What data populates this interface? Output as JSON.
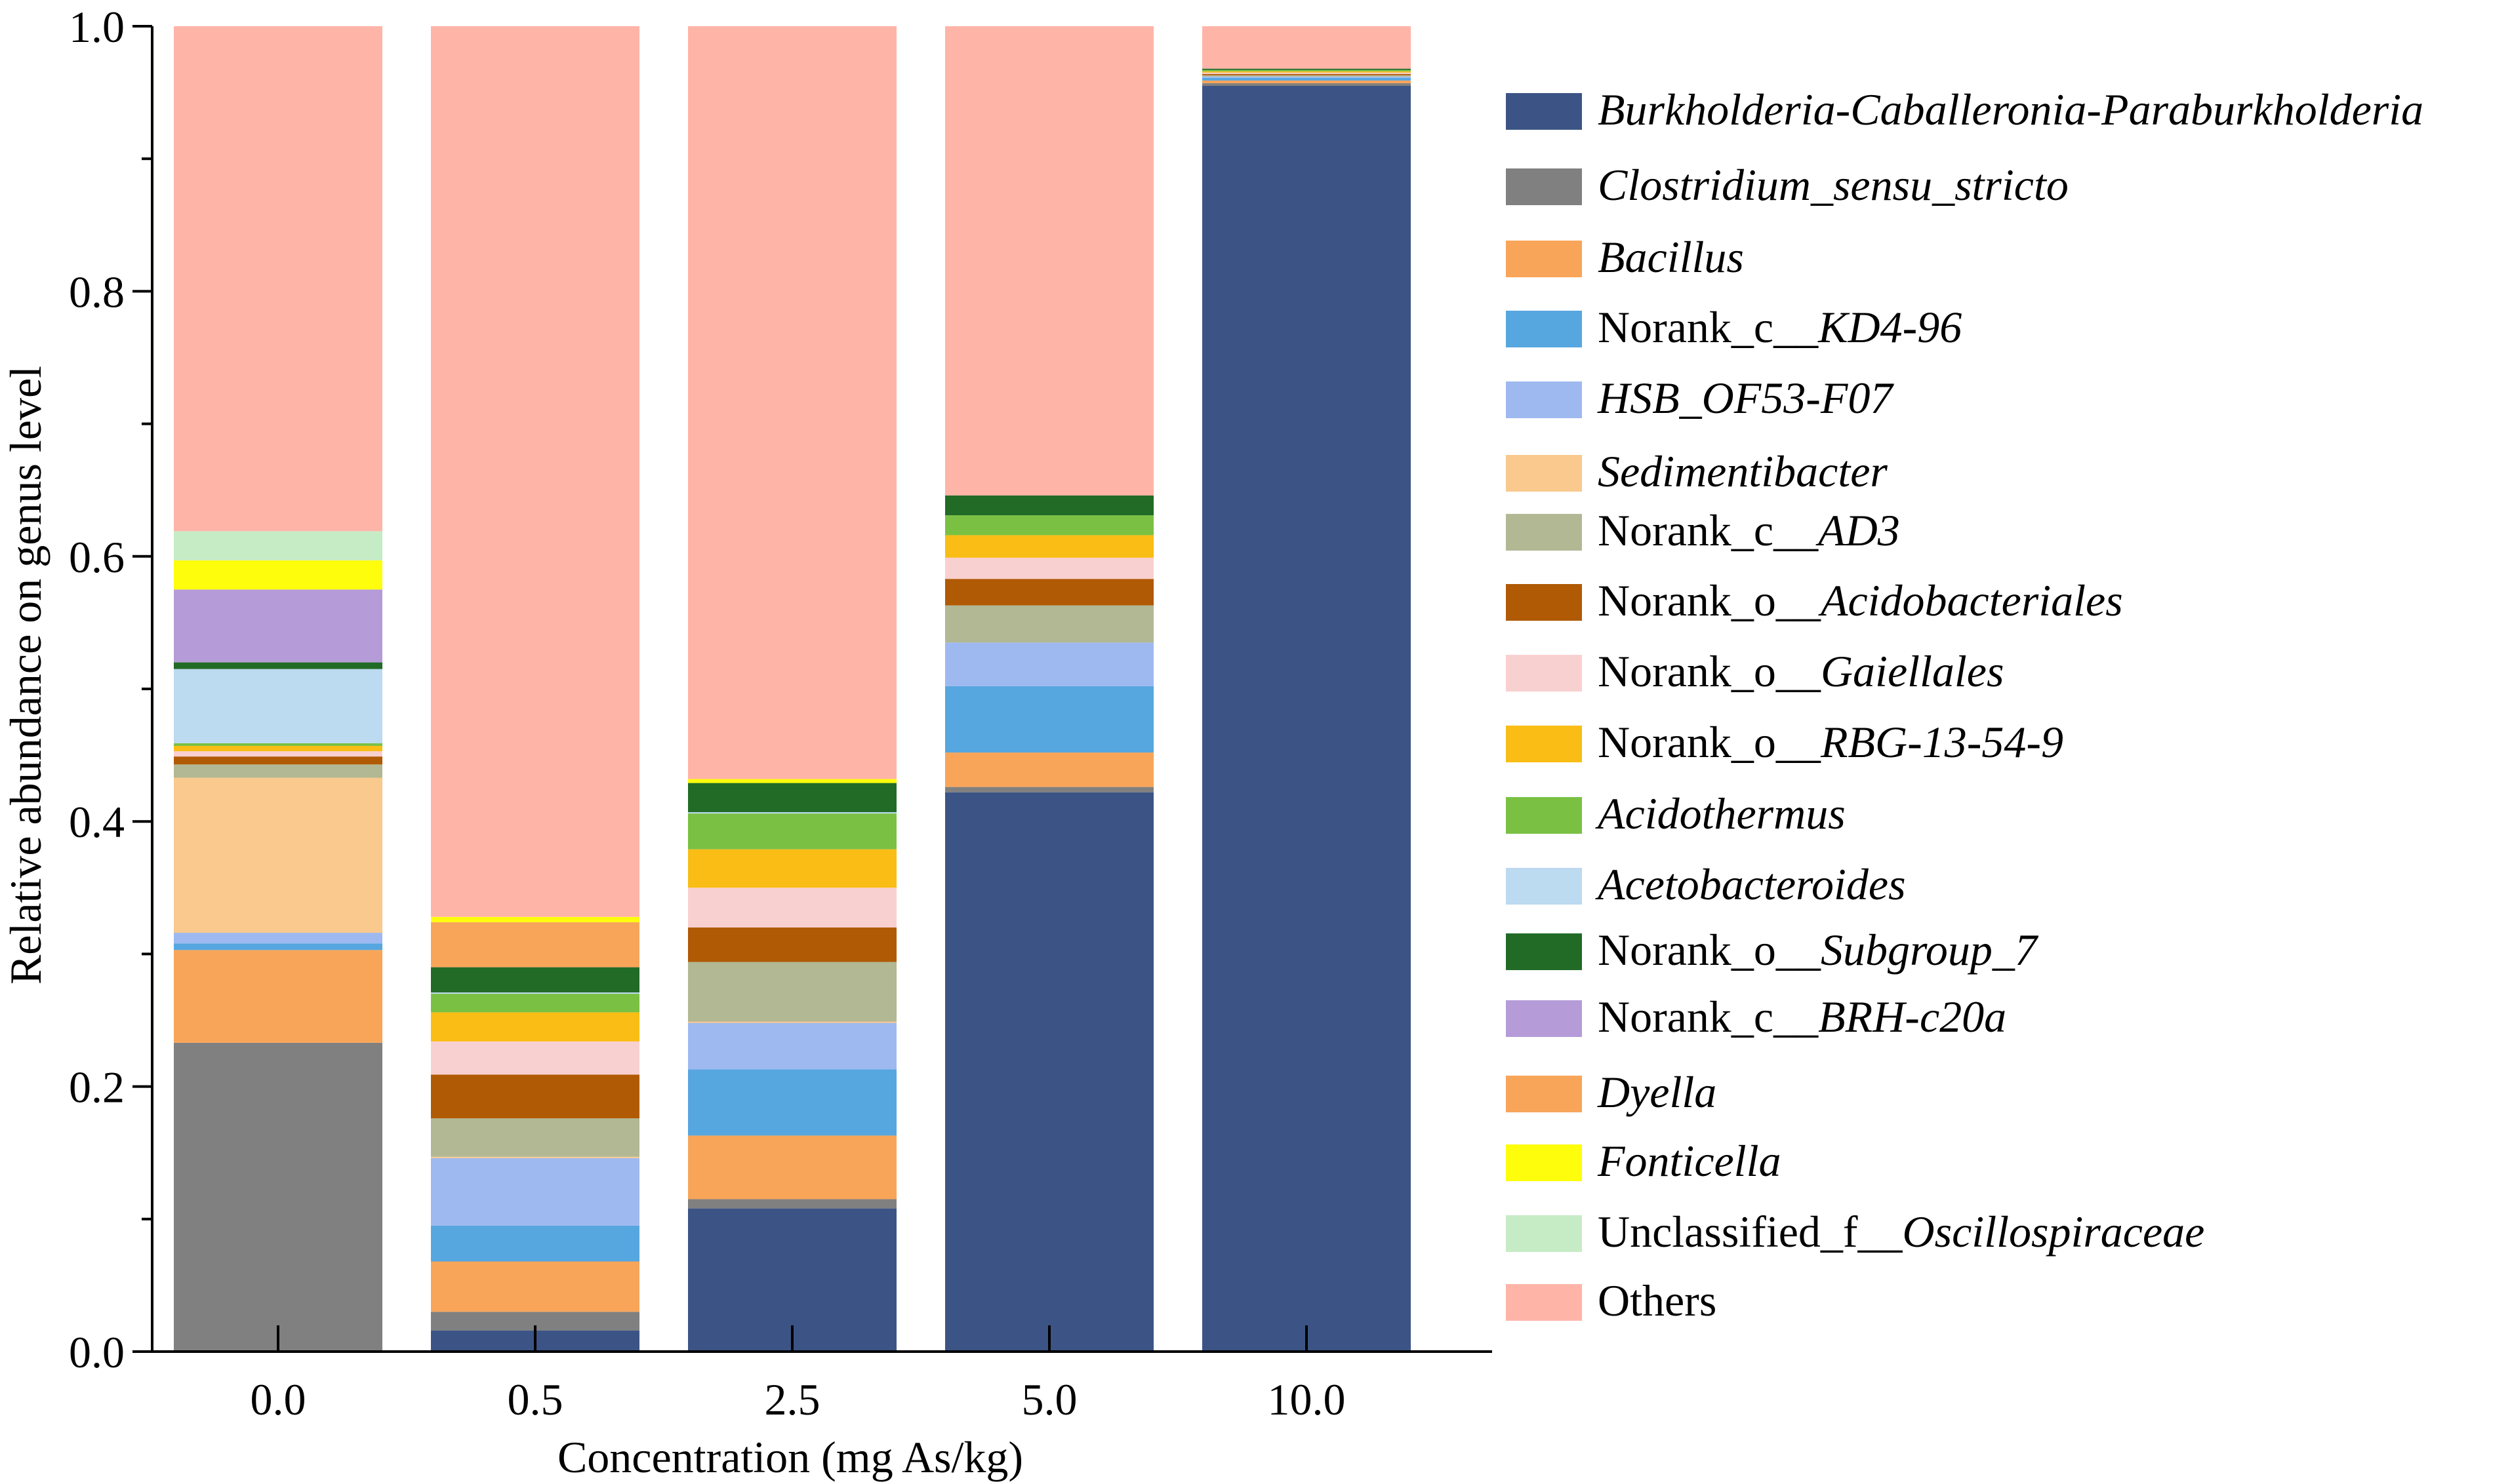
{
  "chart_data": {
    "type": "bar",
    "stacked": true,
    "xlabel": "Concentration (mg As/kg)",
    "ylabel": "Relative abundance on genus level",
    "ylim": [
      0,
      1.0
    ],
    "yticks": [
      "0.0",
      "0.2",
      "0.4",
      "0.6",
      "0.8",
      "1.0"
    ],
    "categories": [
      "0.0",
      "0.5",
      "2.5",
      "5.0",
      "10.0"
    ],
    "legend_position": "right",
    "series": [
      {
        "name": "Burkholderia-Caballeronia-Paraburkholderia",
        "label_parts": [
          {
            "t": "Burkholderia-Caballeronia-Paraburkholderia",
            "i": true
          }
        ],
        "color": "#3c5485",
        "values": [
          0.0,
          0.016,
          0.108,
          0.422,
          0.955
        ]
      },
      {
        "name": "Clostridium_sensu_stricto",
        "label_parts": [
          {
            "t": "Clostridium_sensu_stricto",
            "i": true
          }
        ],
        "color": "#808080",
        "values": [
          0.233,
          0.014,
          0.007,
          0.004,
          0.002
        ]
      },
      {
        "name": "Bacillus",
        "label_parts": [
          {
            "t": "Bacillus",
            "i": true
          }
        ],
        "color": "#f8a55a",
        "values": [
          0.07,
          0.038,
          0.048,
          0.026,
          0.002
        ]
      },
      {
        "name": "Norank_c__KD4-96",
        "label_parts": [
          {
            "t": "Norank_c__",
            "i": false
          },
          {
            "t": "KD4-96",
            "i": true
          }
        ],
        "color": "#56a6df",
        "values": [
          0.005,
          0.027,
          0.05,
          0.05,
          0.002
        ]
      },
      {
        "name": "HSB_OF53-F07",
        "label_parts": [
          {
            "t": "HSB_OF53-F07",
            "i": true
          }
        ],
        "color": "#9eb9f0",
        "values": [
          0.008,
          0.051,
          0.035,
          0.033,
          0.001
        ]
      },
      {
        "name": "Sedimentibacter",
        "label_parts": [
          {
            "t": "Sedimentibacter",
            "i": true
          }
        ],
        "color": "#f9c98d",
        "values": [
          0.117,
          0.001,
          0.001,
          0.0,
          0.0
        ]
      },
      {
        "name": "Norank_c__AD3",
        "label_parts": [
          {
            "t": "Norank_c__",
            "i": false
          },
          {
            "t": "AD3",
            "i": true
          }
        ],
        "color": "#b1b893",
        "values": [
          0.01,
          0.029,
          0.045,
          0.028,
          0.001
        ]
      },
      {
        "name": "Norank_o__Acidobacteriales",
        "label_parts": [
          {
            "t": "Norank_o__",
            "i": false
          },
          {
            "t": "Acidobacteriales",
            "i": true
          }
        ],
        "color": "#b05a05",
        "values": [
          0.006,
          0.033,
          0.026,
          0.02,
          0.001
        ]
      },
      {
        "name": "Norank_o__Gaiellales",
        "label_parts": [
          {
            "t": "Norank_o__",
            "i": false
          },
          {
            "t": "Gaiellales",
            "i": true
          }
        ],
        "color": "#f9d0d0",
        "values": [
          0.004,
          0.025,
          0.03,
          0.016,
          0.001
        ]
      },
      {
        "name": "Norank_o__RBG-13-54-9",
        "label_parts": [
          {
            "t": "Norank_o__",
            "i": false
          },
          {
            "t": "RBG-13-54-9",
            "i": true
          }
        ],
        "color": "#f9bd15",
        "values": [
          0.004,
          0.022,
          0.029,
          0.017,
          0.001
        ]
      },
      {
        "name": "Acidothermus",
        "label_parts": [
          {
            "t": "Acidothermus",
            "i": true
          }
        ],
        "color": "#7ac143",
        "values": [
          0.002,
          0.014,
          0.027,
          0.015,
          0.001
        ]
      },
      {
        "name": "Acetobacteroides",
        "label_parts": [
          {
            "t": "Acetobacteroides",
            "i": true
          }
        ],
        "color": "#bcdaf0",
        "values": [
          0.056,
          0.001,
          0.001,
          0.0,
          0.0
        ]
      },
      {
        "name": "Norank_o__Subgroup_7",
        "label_parts": [
          {
            "t": "Norank_o__",
            "i": false
          },
          {
            "t": "Subgroup_7",
            "i": true
          }
        ],
        "color": "#216b26",
        "values": [
          0.005,
          0.019,
          0.022,
          0.015,
          0.001
        ]
      },
      {
        "name": "Norank_c__BRH-c20a",
        "label_parts": [
          {
            "t": "Norank_c__",
            "i": false
          },
          {
            "t": "BRH-c20a",
            "i": true
          }
        ],
        "color": "#b59cd8",
        "values": [
          0.055,
          0.0,
          0.0,
          0.0,
          0.0
        ]
      },
      {
        "name": "Dyella",
        "label_parts": [
          {
            "t": "Dyella",
            "i": true
          }
        ],
        "color": "#f8a55a",
        "values": [
          0.0,
          0.034,
          0.0,
          0.0,
          0.0
        ]
      },
      {
        "name": "Fonticella",
        "label_parts": [
          {
            "t": "Fonticella",
            "i": true
          }
        ],
        "color": "#fefe0c",
        "values": [
          0.022,
          0.004,
          0.003,
          0.0,
          0.0
        ]
      },
      {
        "name": "Unclassified_f__Oscillospiraceae",
        "label_parts": [
          {
            "t": "Unclassified_f__",
            "i": false
          },
          {
            "t": "Oscillospiraceae",
            "i": true
          }
        ],
        "color": "#c6ecc6",
        "values": [
          0.022,
          0.0,
          0.0,
          0.0,
          0.0
        ]
      },
      {
        "name": "Others",
        "label_parts": [
          {
            "t": "Others",
            "i": false
          }
        ],
        "color": "#ffb4a8",
        "values": [
          0.381,
          0.672,
          0.568,
          0.354,
          0.032
        ]
      }
    ]
  }
}
